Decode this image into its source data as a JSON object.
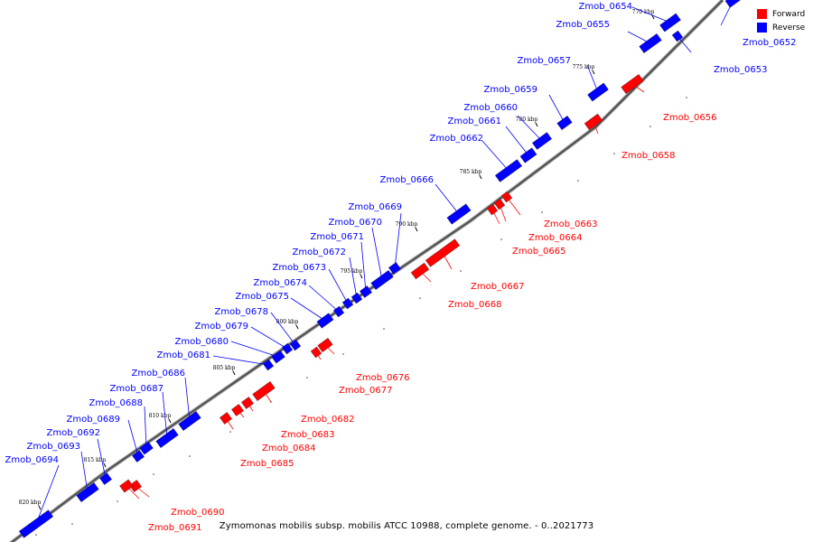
{
  "legend": {
    "forward_label": "Forward",
    "reverse_label": "Reverse",
    "forward_color": "#ff0000",
    "reverse_color": "#0000ff"
  },
  "caption": "Zymomonas mobilis subsp. mobilis ATCC 10988, complete genome. - 0..2021773",
  "axis": {
    "unit": "kbp",
    "major_ticks": [
      770,
      775,
      780,
      785,
      790,
      795,
      800,
      805,
      810,
      815,
      820
    ]
  },
  "genes": [
    {
      "name": "Zmob_0652",
      "strand": "reverse"
    },
    {
      "name": "Zmob_0653",
      "strand": "reverse"
    },
    {
      "name": "Zmob_0654",
      "strand": "reverse"
    },
    {
      "name": "Zmob_0655",
      "strand": "reverse"
    },
    {
      "name": "Zmob_0656",
      "strand": "forward"
    },
    {
      "name": "Zmob_0657",
      "strand": "reverse"
    },
    {
      "name": "Zmob_0658",
      "strand": "forward"
    },
    {
      "name": "Zmob_0659",
      "strand": "reverse"
    },
    {
      "name": "Zmob_0660",
      "strand": "reverse"
    },
    {
      "name": "Zmob_0661",
      "strand": "reverse"
    },
    {
      "name": "Zmob_0662",
      "strand": "reverse"
    },
    {
      "name": "Zmob_0663",
      "strand": "forward"
    },
    {
      "name": "Zmob_0664",
      "strand": "forward"
    },
    {
      "name": "Zmob_0665",
      "strand": "forward"
    },
    {
      "name": "Zmob_0666",
      "strand": "reverse"
    },
    {
      "name": "Zmob_0667",
      "strand": "forward"
    },
    {
      "name": "Zmob_0668",
      "strand": "forward"
    },
    {
      "name": "Zmob_0669",
      "strand": "reverse"
    },
    {
      "name": "Zmob_0670",
      "strand": "reverse"
    },
    {
      "name": "Zmob_0671",
      "strand": "reverse"
    },
    {
      "name": "Zmob_0672",
      "strand": "reverse"
    },
    {
      "name": "Zmob_0673",
      "strand": "reverse"
    },
    {
      "name": "Zmob_0674",
      "strand": "reverse"
    },
    {
      "name": "Zmob_0675",
      "strand": "reverse"
    },
    {
      "name": "Zmob_0676",
      "strand": "forward"
    },
    {
      "name": "Zmob_0677",
      "strand": "forward"
    },
    {
      "name": "Zmob_0678",
      "strand": "reverse"
    },
    {
      "name": "Zmob_0679",
      "strand": "reverse"
    },
    {
      "name": "Zmob_0680",
      "strand": "reverse"
    },
    {
      "name": "Zmob_0681",
      "strand": "reverse"
    },
    {
      "name": "Zmob_0682",
      "strand": "forward"
    },
    {
      "name": "Zmob_0683",
      "strand": "forward"
    },
    {
      "name": "Zmob_0684",
      "strand": "forward"
    },
    {
      "name": "Zmob_0685",
      "strand": "forward"
    },
    {
      "name": "Zmob_0686",
      "strand": "reverse"
    },
    {
      "name": "Zmob_0687",
      "strand": "reverse"
    },
    {
      "name": "Zmob_0688",
      "strand": "reverse"
    },
    {
      "name": "Zmob_0689",
      "strand": "reverse"
    },
    {
      "name": "Zmob_0690",
      "strand": "forward"
    },
    {
      "name": "Zmob_0691",
      "strand": "forward"
    },
    {
      "name": "Zmob_0692",
      "strand": "reverse"
    },
    {
      "name": "Zmob_0693",
      "strand": "reverse"
    },
    {
      "name": "Zmob_0694",
      "strand": "reverse"
    }
  ]
}
